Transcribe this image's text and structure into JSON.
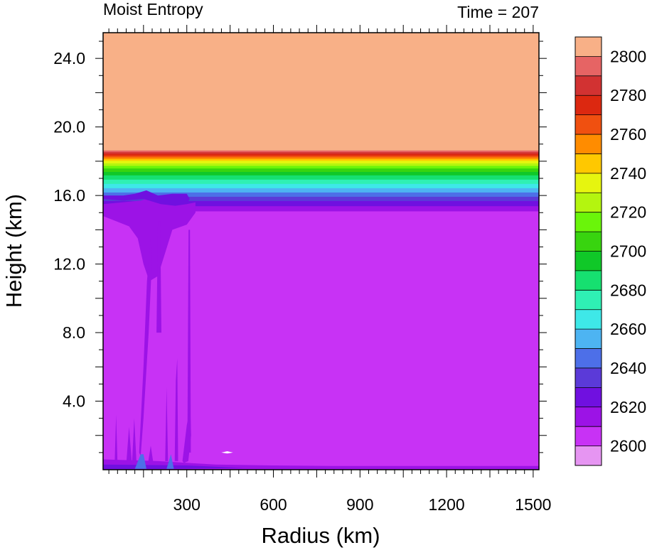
{
  "chart_data": {
    "type": "heatmap",
    "title_left": "Moist Entropy",
    "title_right": "Time = 207",
    "xlabel": "Radius (km)",
    "ylabel": "Height (km)",
    "xlim": [
      10,
      1520
    ],
    "ylim": [
      0,
      25.5
    ],
    "x_ticks": [
      300,
      600,
      900,
      1200,
      1500
    ],
    "x_tick_labels": [
      "300",
      "600",
      "900",
      "1200",
      "1500"
    ],
    "y_ticks": [
      4,
      8,
      12,
      16,
      20,
      24
    ],
    "y_tick_labels": [
      "4.0",
      "8.0",
      "12.0",
      "16.0",
      "20.0",
      "24.0"
    ],
    "colorbar": {
      "levels": [
        2600,
        2610,
        2620,
        2630,
        2640,
        2650,
        2660,
        2670,
        2680,
        2690,
        2700,
        2710,
        2720,
        2730,
        2740,
        2750,
        2760,
        2770,
        2780,
        2790,
        2800
      ],
      "labels": [
        "2600",
        "2620",
        "2640",
        "2660",
        "2680",
        "2700",
        "2720",
        "2740",
        "2760",
        "2780",
        "2800"
      ],
      "colors": [
        "#e695f2",
        "#c832f5",
        "#9c13e6",
        "#7010e0",
        "#5b3ad8",
        "#4d6fe8",
        "#4db4f2",
        "#3ee8e8",
        "#2ff0b4",
        "#16e070",
        "#10c828",
        "#38d40f",
        "#6af50a",
        "#b4f50f",
        "#e6f50f",
        "#ffc800",
        "#ff8c00",
        "#f05010",
        "#dc2810",
        "#d23232",
        "#e66464",
        "#f8b087"
      ]
    },
    "field_bands": [
      {
        "color": "#c832f5",
        "from": 0.4,
        "to": 15.1
      },
      {
        "color": "#9c13e6",
        "from": 15.1,
        "to": 15.4
      },
      {
        "color": "#7010e0",
        "from": 15.4,
        "to": 15.7
      },
      {
        "color": "#5b3ad8",
        "from": 15.7,
        "to": 15.95
      },
      {
        "color": "#4d6fe8",
        "from": 15.95,
        "to": 16.2
      },
      {
        "color": "#4db4f2",
        "from": 16.2,
        "to": 16.45
      },
      {
        "color": "#3ee8e8",
        "from": 16.45,
        "to": 16.7
      },
      {
        "color": "#2ff0b4",
        "from": 16.7,
        "to": 16.95
      },
      {
        "color": "#16e070",
        "from": 16.95,
        "to": 17.2
      },
      {
        "color": "#10c828",
        "from": 17.2,
        "to": 17.4
      },
      {
        "color": "#38d40f",
        "from": 17.4,
        "to": 17.6
      },
      {
        "color": "#6af50a",
        "from": 17.6,
        "to": 17.75
      },
      {
        "color": "#b4f50f",
        "from": 17.75,
        "to": 17.9
      },
      {
        "color": "#e6f50f",
        "from": 17.9,
        "to": 18.05
      },
      {
        "color": "#ffc800",
        "from": 18.05,
        "to": 18.15
      },
      {
        "color": "#ff8c00",
        "from": 18.15,
        "to": 18.25
      },
      {
        "color": "#f05010",
        "from": 18.25,
        "to": 18.35
      },
      {
        "color": "#dc2810",
        "from": 18.35,
        "to": 18.45
      },
      {
        "color": "#d23232",
        "from": 18.45,
        "to": 18.55
      },
      {
        "color": "#e66464",
        "from": 18.55,
        "to": 18.65
      },
      {
        "color": "#f8b087",
        "from": 18.65,
        "to": 25.5
      }
    ],
    "features": [
      {
        "color": "#9c13e6",
        "x": [
          10,
          40,
          100,
          130,
          150,
          170,
          200,
          250,
          300,
          330,
          330,
          300,
          270,
          240,
          200,
          190,
          175,
          160,
          140,
          10
        ],
        "y": [
          14.8,
          14.6,
          14.2,
          13.5,
          12.0,
          11.0,
          11.3,
          14.0,
          14.3,
          15.0,
          15.6,
          15.5,
          15.5,
          15.5,
          15.6,
          15.7,
          15.8,
          15.8,
          15.7,
          15.5
        ]
      },
      {
        "color": "#9c13e6",
        "x": [
          135,
          150,
          162,
          175,
          180,
          168,
          150,
          140
        ],
        "y": [
          1.0,
          6.0,
          11.0,
          13.5,
          12.5,
          8.0,
          3.0,
          0.8
        ]
      },
      {
        "color": "#9c13e6",
        "x": [
          195,
          200,
          208,
          212
        ],
        "y": [
          8.0,
          14.5,
          14.5,
          8.0
        ]
      },
      {
        "color": "#9c13e6",
        "x": [
          302,
          306,
          311,
          314
        ],
        "y": [
          1.0,
          14.0,
          14.0,
          1.0
        ]
      },
      {
        "color": "#9c13e6",
        "x": [
          285,
          300,
          312,
          315,
          305,
          290
        ],
        "y": [
          0.5,
          2.6,
          3.6,
          2.0,
          0.5,
          0.4
        ]
      },
      {
        "color": "#9c13e6",
        "x": [
          258,
          262,
          267,
          270
        ],
        "y": [
          0.5,
          5.2,
          6.5,
          0.5
        ]
      },
      {
        "color": "#9c13e6",
        "x": [
          225,
          230,
          235
        ],
        "y": [
          0.5,
          4.8,
          0.5
        ]
      },
      {
        "color": "#9c13e6",
        "x": [
          50,
          55,
          60
        ],
        "y": [
          0.3,
          3.2,
          0.3
        ]
      },
      {
        "color": "#9c13e6",
        "x": [
          90,
          100,
          110
        ],
        "y": [
          0.3,
          2.5,
          0.3
        ]
      },
      {
        "color": "#9c13e6",
        "x": [
          110,
          118,
          126
        ],
        "y": [
          0.3,
          3.0,
          0.3
        ]
      },
      {
        "color": "#9c13e6",
        "x": [
          165,
          175,
          185
        ],
        "y": [
          0.3,
          1.4,
          0.3
        ]
      },
      {
        "color": "#9c13e6",
        "x": [
          10,
          200,
          400,
          600,
          800,
          1000,
          1200,
          1400,
          1520,
          1520,
          10
        ],
        "y": [
          0.6,
          0.5,
          0.3,
          0.25,
          0.22,
          0.22,
          0.22,
          0.22,
          0.22,
          0.0,
          0.0
        ]
      },
      {
        "color": "#7010e0",
        "x": [
          10,
          300,
          500,
          10
        ],
        "y": [
          0.3,
          0.25,
          0.1,
          0.0
        ]
      },
      {
        "color": "#7010e0",
        "x": [
          10,
          80,
          150,
          210,
          260,
          300,
          310,
          300,
          250,
          200,
          160,
          120,
          80,
          40,
          10
        ],
        "y": [
          15.8,
          15.7,
          15.8,
          15.5,
          15.4,
          15.5,
          15.8,
          16.1,
          16.1,
          16.0,
          16.3,
          16.1,
          16.0,
          16.0,
          16.0
        ]
      },
      {
        "color": "#4d6fe8",
        "x": [
          120,
          140,
          150,
          160
        ],
        "y": [
          0.05,
          0.9,
          0.9,
          0.05
        ]
      },
      {
        "color": "#4d6fe8",
        "x": [
          230,
          245,
          255
        ],
        "y": [
          0.05,
          0.9,
          0.05
        ]
      },
      {
        "color": "#ffffff",
        "x": [
          420,
          440,
          460,
          440
        ],
        "y": [
          1.0,
          1.08,
          1.0,
          0.95
        ]
      }
    ]
  }
}
